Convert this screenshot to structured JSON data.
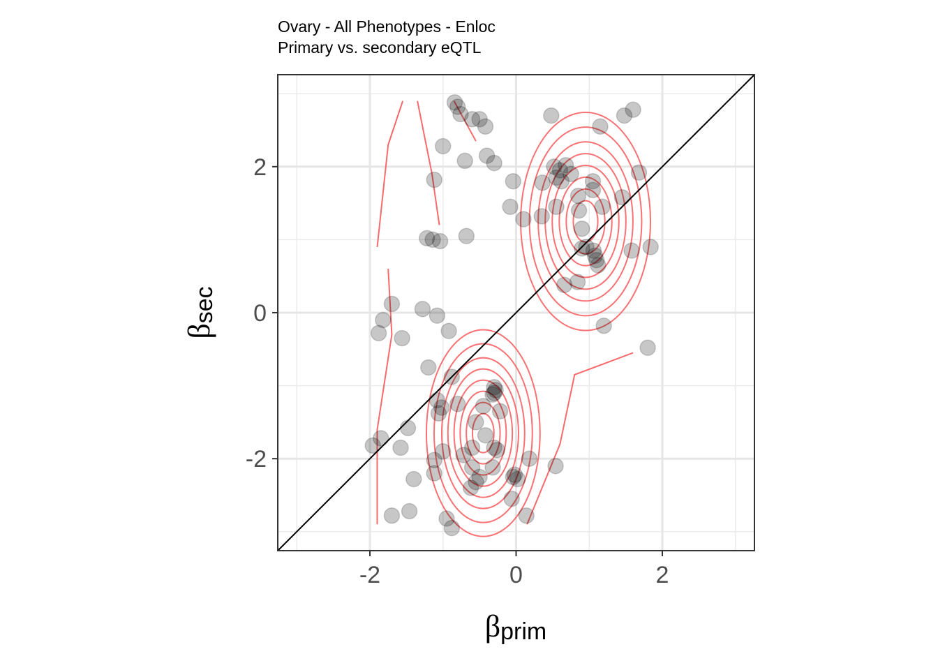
{
  "chart_data": {
    "type": "scatter",
    "title": "Ovary - All Phenotypes - Enloc",
    "subtitle": "Primary vs. secondary eQTL",
    "xlabel": {
      "symbol": "β",
      "subscript": "prim"
    },
    "ylabel": {
      "symbol": "β",
      "subscript": "sec"
    },
    "xlim": [
      -3.26,
      3.26
    ],
    "ylim": [
      -3.26,
      3.26
    ],
    "x_ticks": [
      -2,
      0,
      2
    ],
    "x_tick_labels": [
      "-2",
      "0",
      "2"
    ],
    "y_ticks": [
      -2,
      0,
      2
    ],
    "y_tick_labels": [
      "-2",
      "0",
      "2"
    ],
    "grid": true,
    "reference_line": {
      "slope": 1,
      "intercept": 0,
      "color": "#000000"
    },
    "point_color": "#000000",
    "point_opacity": 0.22,
    "contour_color": "#f8696b",
    "density_centers": [
      {
        "x": 0.95,
        "y": 1.25
      },
      {
        "x": -0.45,
        "y": -1.65
      }
    ],
    "points": [
      [
        -0.84,
        2.88
      ],
      [
        -0.8,
        2.82
      ],
      [
        -0.76,
        2.72
      ],
      [
        -0.6,
        2.65
      ],
      [
        -0.5,
        2.65
      ],
      [
        -0.42,
        2.55
      ],
      [
        0.48,
        2.7
      ],
      [
        1.15,
        2.55
      ],
      [
        1.48,
        2.7
      ],
      [
        1.6,
        2.78
      ],
      [
        -1.0,
        2.28
      ],
      [
        -0.4,
        2.15
      ],
      [
        -0.7,
        2.08
      ],
      [
        -0.3,
        2.05
      ],
      [
        0.52,
        2.0
      ],
      [
        0.6,
        1.95
      ],
      [
        0.68,
        2.02
      ],
      [
        0.75,
        1.9
      ],
      [
        0.55,
        1.85
      ],
      [
        0.62,
        1.8
      ],
      [
        -1.12,
        1.82
      ],
      [
        -0.04,
        1.8
      ],
      [
        0.36,
        1.78
      ],
      [
        1.05,
        1.8
      ],
      [
        1.68,
        1.92
      ],
      [
        0.85,
        1.6
      ],
      [
        1.05,
        1.68
      ],
      [
        1.45,
        1.58
      ],
      [
        -0.08,
        1.45
      ],
      [
        0.55,
        1.45
      ],
      [
        0.86,
        1.4
      ],
      [
        1.18,
        1.45
      ],
      [
        0.1,
        1.28
      ],
      [
        0.35,
        1.32
      ],
      [
        0.9,
        1.15
      ],
      [
        -1.22,
        1.02
      ],
      [
        -1.14,
        1.0
      ],
      [
        -1.04,
        0.98
      ],
      [
        -0.68,
        1.05
      ],
      [
        0.9,
        0.88
      ],
      [
        0.96,
        0.9
      ],
      [
        1.06,
        0.85
      ],
      [
        1.08,
        0.78
      ],
      [
        1.1,
        0.72
      ],
      [
        1.12,
        0.65
      ],
      [
        1.58,
        0.85
      ],
      [
        1.84,
        0.9
      ],
      [
        0.66,
        0.38
      ],
      [
        0.84,
        0.42
      ],
      [
        -1.7,
        0.12
      ],
      [
        -1.28,
        0.05
      ],
      [
        -1.08,
        -0.04
      ],
      [
        -1.82,
        -0.1
      ],
      [
        -0.92,
        -0.25
      ],
      [
        -1.88,
        -0.28
      ],
      [
        -1.56,
        -0.35
      ],
      [
        1.2,
        -0.18
      ],
      [
        1.8,
        -0.48
      ],
      [
        -1.2,
        -0.75
      ],
      [
        -0.88,
        -0.88
      ],
      [
        -0.3,
        -1.02
      ],
      [
        -0.28,
        -1.06
      ],
      [
        -0.3,
        -1.1
      ],
      [
        -0.32,
        -1.12
      ],
      [
        -1.08,
        -1.2
      ],
      [
        -1.02,
        -1.3
      ],
      [
        -1.06,
        -1.38
      ],
      [
        -0.8,
        -1.25
      ],
      [
        -0.45,
        -1.28
      ],
      [
        -0.22,
        -1.35
      ],
      [
        -0.55,
        -1.5
      ],
      [
        -0.42,
        -1.68
      ],
      [
        -1.48,
        -1.58
      ],
      [
        -1.85,
        -1.72
      ],
      [
        -1.96,
        -1.82
      ],
      [
        -1.58,
        -1.85
      ],
      [
        -1.0,
        -1.9
      ],
      [
        -0.6,
        -1.85
      ],
      [
        -0.3,
        -1.85
      ],
      [
        -0.26,
        -1.88
      ],
      [
        -0.72,
        -1.95
      ],
      [
        -1.12,
        -2.02
      ],
      [
        -0.6,
        -2.12
      ],
      [
        -0.32,
        -2.12
      ],
      [
        0.18,
        -2.0
      ],
      [
        0.54,
        -2.1
      ],
      [
        -1.12,
        -2.2
      ],
      [
        -0.02,
        -2.22
      ],
      [
        -0.04,
        -2.25
      ],
      [
        0.02,
        -2.28
      ],
      [
        -1.4,
        -2.28
      ],
      [
        -0.5,
        -2.25
      ],
      [
        -0.55,
        -2.32
      ],
      [
        -0.62,
        -2.4
      ],
      [
        -0.06,
        -2.55
      ],
      [
        -1.7,
        -2.78
      ],
      [
        -1.46,
        -2.72
      ],
      [
        -0.95,
        -2.82
      ],
      [
        -0.88,
        -2.95
      ],
      [
        0.14,
        -2.78
      ]
    ]
  }
}
